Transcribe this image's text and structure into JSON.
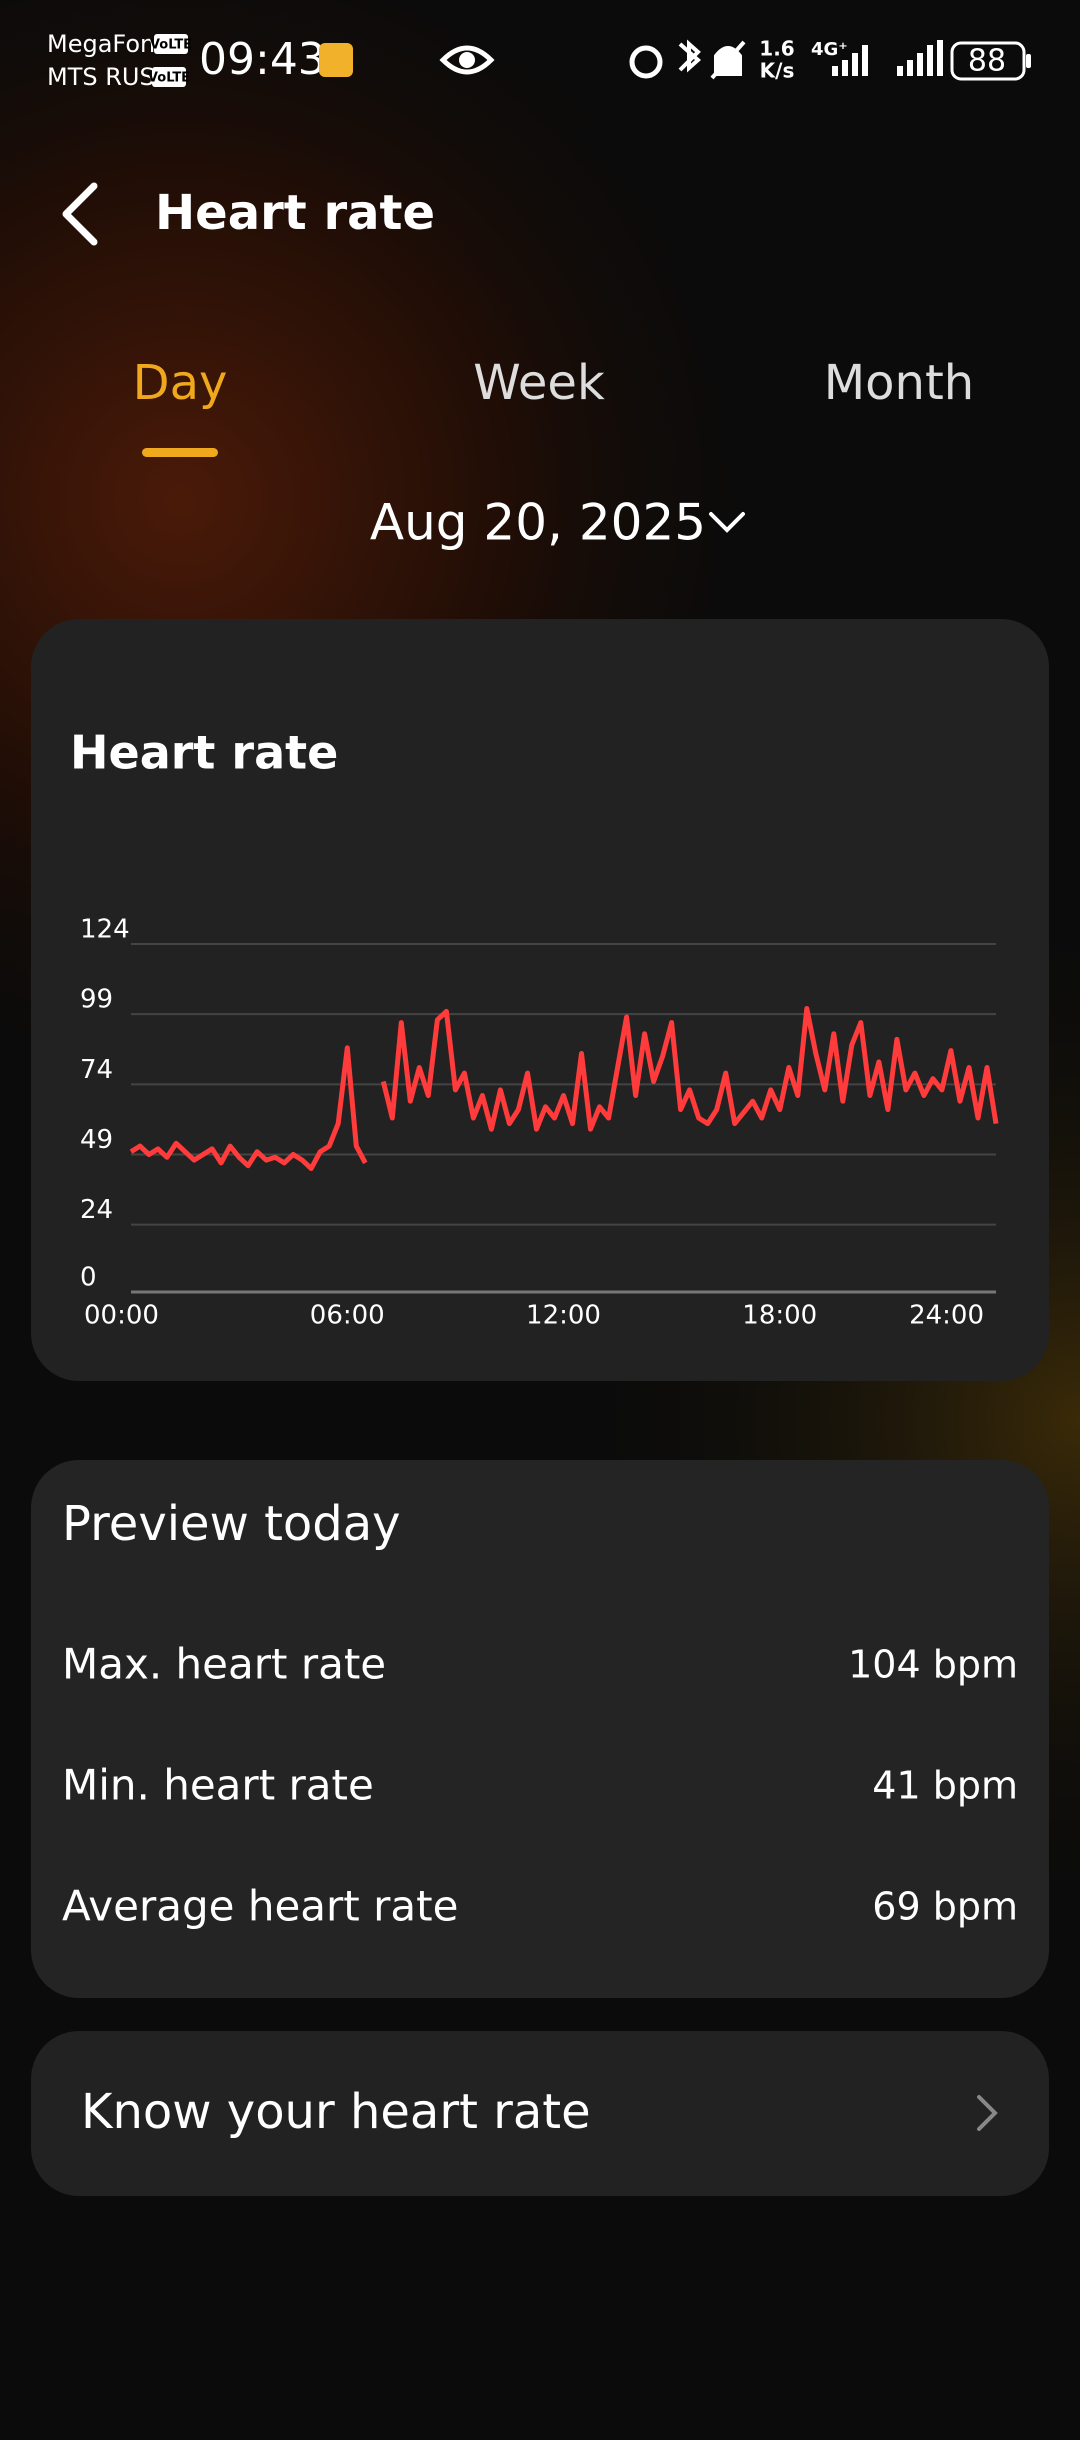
{
  "status_bar": {
    "carrier_1": "MegaFon",
    "carrier_2": "MTS RUS",
    "volte_1": "VoLTE",
    "volte_2": "VoLTE",
    "time": "09:43",
    "speed_value": "1.6",
    "speed_unit": "K/s",
    "network": "4G⁺",
    "battery": "88"
  },
  "header": {
    "title": "Heart rate"
  },
  "tabs": [
    "Day",
    "Week",
    "Month"
  ],
  "date": "Aug 20, 2025",
  "chart_card": {
    "title": "Heart rate"
  },
  "chart_data": {
    "type": "line",
    "color": "#ff3b3b",
    "grid": true,
    "xlim": [
      0,
      24
    ],
    "xticks": [
      {
        "value": 0,
        "label": "00:00"
      },
      {
        "value": 6,
        "label": "06:00"
      },
      {
        "value": 12,
        "label": "12:00"
      },
      {
        "value": 18,
        "label": "18:00"
      },
      {
        "value": 24,
        "label": "24:00"
      }
    ],
    "ylim": [
      0,
      124
    ],
    "yticks": [
      0,
      24,
      49,
      74,
      99,
      124
    ],
    "x": [
      0,
      0.25,
      0.5,
      0.75,
      1,
      1.25,
      1.5,
      1.75,
      2,
      2.25,
      2.5,
      2.75,
      3,
      3.25,
      3.5,
      3.75,
      4,
      4.25,
      4.5,
      4.75,
      5,
      5.25,
      5.5,
      5.75,
      6,
      6.25,
      6.5,
      6.75,
      7,
      7.25,
      7.5,
      7.75,
      8,
      8.25,
      8.5,
      8.75,
      9,
      9.25,
      9.5,
      9.75,
      10,
      10.25,
      10.5,
      10.75,
      11,
      11.25,
      11.5,
      11.75,
      12,
      12.25,
      12.5,
      12.75,
      13,
      13.25,
      13.5,
      13.75,
      14,
      14.25,
      14.5,
      14.75,
      15,
      15.25,
      15.5,
      15.75,
      16,
      16.25,
      16.5,
      16.75,
      17,
      17.25,
      17.5,
      17.75,
      18,
      18.25,
      18.5,
      18.75,
      19,
      19.25,
      19.5,
      19.75,
      20,
      20.25,
      20.5,
      20.75,
      21,
      21.25,
      21.5,
      21.75,
      22,
      22.25,
      22.5,
      22.75,
      23,
      23.25,
      23.5,
      23.75,
      24
    ],
    "values": [
      50,
      52,
      49,
      51,
      48,
      53,
      50,
      47,
      49,
      51,
      46,
      52,
      48,
      45,
      50,
      47,
      48,
      46,
      49,
      47,
      44,
      50,
      52,
      60,
      87,
      52,
      46,
      null,
      75,
      62,
      96,
      68,
      80,
      70,
      97,
      100,
      72,
      78,
      62,
      70,
      58,
      72,
      60,
      65,
      78,
      58,
      66,
      62,
      70,
      60,
      85,
      58,
      66,
      62,
      80,
      98,
      70,
      92,
      75,
      84,
      96,
      65,
      72,
      62,
      60,
      65,
      78,
      60,
      64,
      68,
      62,
      72,
      65,
      80,
      70,
      101,
      85,
      72,
      92,
      68,
      88,
      96,
      70,
      82,
      65,
      90,
      72,
      78,
      70,
      76,
      72,
      86,
      68,
      80,
      62,
      80,
      60
    ]
  },
  "preview": {
    "title": "Preview today",
    "rows": [
      {
        "label": "Max. heart rate",
        "value": "104 bpm"
      },
      {
        "label": "Min. heart rate",
        "value": "41 bpm"
      },
      {
        "label": "Average heart rate",
        "value": "69 bpm"
      }
    ]
  },
  "know": {
    "label": "Know your heart rate"
  }
}
